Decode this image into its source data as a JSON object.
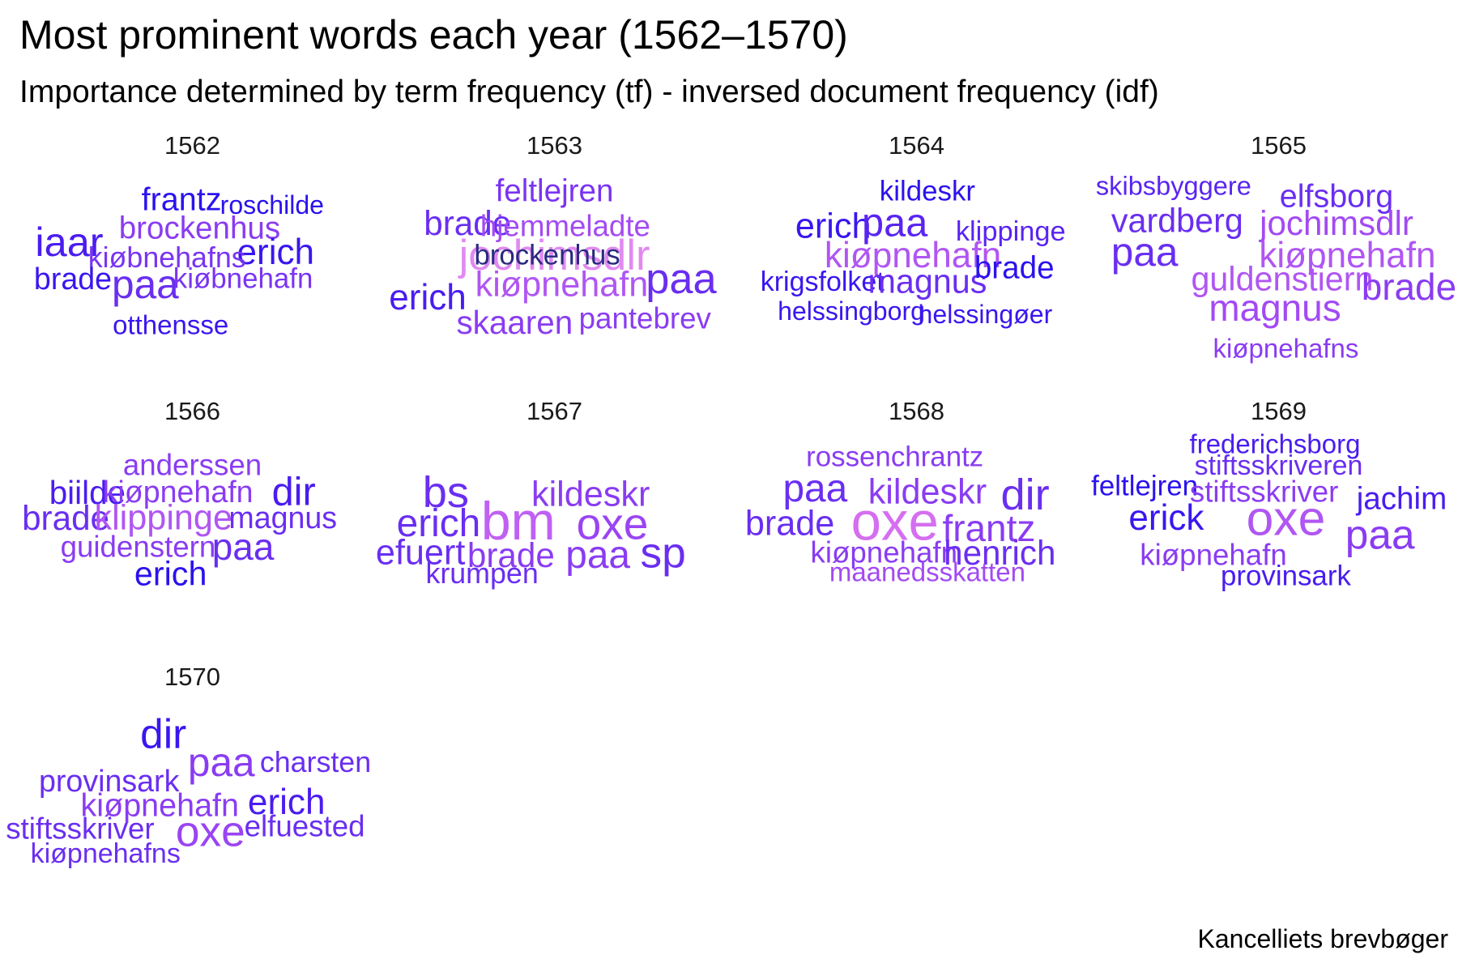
{
  "title": "Most prominent words each year (1562–1570)",
  "subtitle": "Importance determined by term frequency (tf) - inversed document frequency (idf)",
  "caption": "Kancelliets brevbøger",
  "chart_data": {
    "type": "wordcloud-facets",
    "color_range": [
      "#1a0aec",
      "#d56ef0"
    ],
    "panels": [
      {
        "year": "1562",
        "words": [
          {
            "text": "iaar",
            "weight": 0.62,
            "color": "#4a1cf0"
          },
          {
            "text": "frantz",
            "weight": 0.38,
            "color": "#2a12ee"
          },
          {
            "text": "roschilde",
            "weight": 0.22,
            "color": "#2a12ee"
          },
          {
            "text": "brockenhus",
            "weight": 0.36,
            "color": "#8a3cf2"
          },
          {
            "text": "erich",
            "weight": 0.48,
            "color": "#3a16ef"
          },
          {
            "text": "kiøbnehafns",
            "weight": 0.3,
            "color": "#7a34f2"
          },
          {
            "text": "brade",
            "weight": 0.34,
            "color": "#3a16ef"
          },
          {
            "text": "paa",
            "weight": 0.6,
            "color": "#6a2ef1"
          },
          {
            "text": "kiøbnehafn",
            "weight": 0.28,
            "color": "#7a34f2"
          },
          {
            "text": "otthensse",
            "weight": 0.24,
            "color": "#3a16ef"
          }
        ]
      },
      {
        "year": "1563",
        "words": [
          {
            "text": "feltlejren",
            "weight": 0.36,
            "color": "#7a34f2"
          },
          {
            "text": "brade",
            "weight": 0.44,
            "color": "#6a2ef1"
          },
          {
            "text": "hjemmeladte",
            "weight": 0.32,
            "color": "#a34af3"
          },
          {
            "text": "jochimsdlr",
            "weight": 0.66,
            "color": "#e08af0"
          },
          {
            "text": "brockenhus",
            "weight": 0.28,
            "color": "#2a2a80"
          },
          {
            "text": "paa",
            "weight": 0.66,
            "color": "#6a2ef1"
          },
          {
            "text": "kiøpnehafn",
            "weight": 0.46,
            "color": "#b056f3"
          },
          {
            "text": "erich",
            "weight": 0.48,
            "color": "#4a1cf0"
          },
          {
            "text": "skaaren",
            "weight": 0.4,
            "color": "#8a3cf2"
          },
          {
            "text": "pantebrev",
            "weight": 0.32,
            "color": "#8a3cf2"
          }
        ]
      },
      {
        "year": "1564",
        "words": [
          {
            "text": "kildeskr",
            "weight": 0.28,
            "color": "#2a12ee"
          },
          {
            "text": "erich",
            "weight": 0.46,
            "color": "#3a16ef"
          },
          {
            "text": "paa",
            "weight": 0.58,
            "color": "#5a24f1"
          },
          {
            "text": "klippinge",
            "weight": 0.27,
            "color": "#5a24f1"
          },
          {
            "text": "kiøpnehafn",
            "weight": 0.48,
            "color": "#b056f3"
          },
          {
            "text": "krigsfolket",
            "weight": 0.26,
            "color": "#3a16ef"
          },
          {
            "text": "magnus",
            "weight": 0.42,
            "color": "#6a2ef1"
          },
          {
            "text": "brade",
            "weight": 0.36,
            "color": "#2a12ee"
          },
          {
            "text": "helssingborg",
            "weight": 0.22,
            "color": "#3a16ef"
          },
          {
            "text": "helssingøer",
            "weight": 0.22,
            "color": "#3a16ef"
          }
        ]
      },
      {
        "year": "1565",
        "words": [
          {
            "text": "skibsbyggere",
            "weight": 0.23,
            "color": "#5a24f1"
          },
          {
            "text": "elfsborg",
            "weight": 0.38,
            "color": "#6a2ef1"
          },
          {
            "text": "vardberg",
            "weight": 0.42,
            "color": "#6a2ef1"
          },
          {
            "text": "jochimsdlr",
            "weight": 0.44,
            "color": "#a34af3"
          },
          {
            "text": "paa",
            "weight": 0.6,
            "color": "#6a2ef1"
          },
          {
            "text": "kiøpnehafn",
            "weight": 0.48,
            "color": "#b056f3"
          },
          {
            "text": "guldenstiern",
            "weight": 0.42,
            "color": "#b056f3"
          },
          {
            "text": "brade",
            "weight": 0.52,
            "color": "#8a3cf2"
          },
          {
            "text": "magnus",
            "weight": 0.52,
            "color": "#a34af3"
          },
          {
            "text": "kiøpnehafns",
            "weight": 0.24,
            "color": "#8a3cf2"
          }
        ]
      },
      {
        "year": "1566",
        "words": [
          {
            "text": "anderssen",
            "weight": 0.32,
            "color": "#8a3cf2"
          },
          {
            "text": "biilde",
            "weight": 0.4,
            "color": "#4a1cf0"
          },
          {
            "text": "kiøpnehafn",
            "weight": 0.34,
            "color": "#8a3cf2"
          },
          {
            "text": "dir",
            "weight": 0.58,
            "color": "#4a1cf0"
          },
          {
            "text": "brade",
            "weight": 0.44,
            "color": "#6a2ef1"
          },
          {
            "text": "klippinge",
            "weight": 0.46,
            "color": "#b056f3"
          },
          {
            "text": "magnus",
            "weight": 0.34,
            "color": "#6a2ef1"
          },
          {
            "text": "guidenstern",
            "weight": 0.32,
            "color": "#8a3cf2"
          },
          {
            "text": "paa",
            "weight": 0.52,
            "color": "#6a2ef1"
          },
          {
            "text": "erich",
            "weight": 0.42,
            "color": "#2a12ee"
          }
        ]
      },
      {
        "year": "1567",
        "words": [
          {
            "text": "bs",
            "weight": 0.7,
            "color": "#6a2ef1"
          },
          {
            "text": "kildeskr",
            "weight": 0.46,
            "color": "#8a3cf2"
          },
          {
            "text": "erich",
            "weight": 0.56,
            "color": "#6a2ef1"
          },
          {
            "text": "bm",
            "weight": 0.96,
            "color": "#c060f3"
          },
          {
            "text": "oxe",
            "weight": 0.72,
            "color": "#9a44f3"
          },
          {
            "text": "efuert",
            "weight": 0.46,
            "color": "#6a2ef1"
          },
          {
            "text": "brade",
            "weight": 0.44,
            "color": "#8a3cf2"
          },
          {
            "text": "paa",
            "weight": 0.56,
            "color": "#8a3cf2"
          },
          {
            "text": "sp",
            "weight": 0.68,
            "color": "#6a2ef1"
          },
          {
            "text": "krumpen",
            "weight": 0.3,
            "color": "#6a2ef1"
          }
        ]
      },
      {
        "year": "1568",
        "words": [
          {
            "text": "rossenchrantz",
            "weight": 0.28,
            "color": "#8a3cf2"
          },
          {
            "text": "paa",
            "weight": 0.56,
            "color": "#6a2ef1"
          },
          {
            "text": "kildeskr",
            "weight": 0.46,
            "color": "#8a3cf2"
          },
          {
            "text": "dir",
            "weight": 0.7,
            "color": "#6a2ef1"
          },
          {
            "text": "brade",
            "weight": 0.46,
            "color": "#6a2ef1"
          },
          {
            "text": "oxe",
            "weight": 0.98,
            "color": "#d56ef0"
          },
          {
            "text": "frantz",
            "weight": 0.52,
            "color": "#8a3cf2"
          },
          {
            "text": "kiøpnehafn",
            "weight": 0.32,
            "color": "#8a3cf2"
          },
          {
            "text": "henrich",
            "weight": 0.44,
            "color": "#6a2ef1"
          },
          {
            "text": "maanedsskatten",
            "weight": 0.24,
            "color": "#a34af3"
          }
        ]
      },
      {
        "year": "1569",
        "words": [
          {
            "text": "frederichsborg",
            "weight": 0.24,
            "color": "#4a1cf0"
          },
          {
            "text": "stiftsskriveren",
            "weight": 0.26,
            "color": "#6a2ef1"
          },
          {
            "text": "feltlejren",
            "weight": 0.28,
            "color": "#2a12ee"
          },
          {
            "text": "stiftsskriver",
            "weight": 0.32,
            "color": "#8a3cf2"
          },
          {
            "text": "jachim",
            "weight": 0.36,
            "color": "#4a1cf0"
          },
          {
            "text": "erick",
            "weight": 0.48,
            "color": "#3a16ef"
          },
          {
            "text": "oxe",
            "weight": 0.84,
            "color": "#b056f3"
          },
          {
            "text": "paa",
            "weight": 0.64,
            "color": "#8a3cf2"
          },
          {
            "text": "kiøpnehafn",
            "weight": 0.32,
            "color": "#8a3cf2"
          },
          {
            "text": "provinsark",
            "weight": 0.28,
            "color": "#4a1cf0"
          }
        ]
      },
      {
        "year": "1570",
        "words": [
          {
            "text": "dir",
            "weight": 0.64,
            "color": "#3a16ef"
          },
          {
            "text": "paa",
            "weight": 0.6,
            "color": "#8a3cf2"
          },
          {
            "text": "charsten",
            "weight": 0.3,
            "color": "#6a2ef1"
          },
          {
            "text": "provinsark",
            "weight": 0.34,
            "color": "#6a2ef1"
          },
          {
            "text": "kiøpnehafn",
            "weight": 0.38,
            "color": "#8a3cf2"
          },
          {
            "text": "erich",
            "weight": 0.48,
            "color": "#4a1cf0"
          },
          {
            "text": "stiftsskriver",
            "weight": 0.32,
            "color": "#6a2ef1"
          },
          {
            "text": "oxe",
            "weight": 0.68,
            "color": "#9a44f3"
          },
          {
            "text": "elfuested",
            "weight": 0.32,
            "color": "#6a2ef1"
          },
          {
            "text": "kiøpnehafns",
            "weight": 0.26,
            "color": "#6a2ef1"
          }
        ]
      }
    ]
  }
}
